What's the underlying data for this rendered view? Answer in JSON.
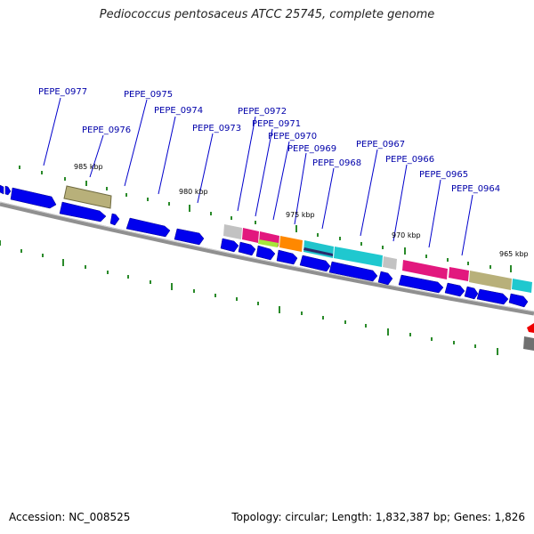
{
  "title": "Pediococcus pentosaceus ATCC 25745, complete genome",
  "accession_label": "Accession: NC_008525",
  "stats_label": "Topology: circular; Length: 1,832,387 bp; Genes: 1,826",
  "colors": {
    "forward_gene": "#0000ee",
    "backbone": "#888888",
    "gene_label": "#0000aa",
    "tick": "#228b22"
  },
  "position_labels": [
    "985 kbp",
    "980 kbp",
    "975 kbp",
    "970 kbp",
    "965 kbp"
  ],
  "gene_labels": [
    "PEPE_0977",
    "PEPE_0976",
    "PEPE_0975",
    "PEPE_0974",
    "PEPE_0973",
    "PEPE_0972",
    "PEPE_0971",
    "PEPE_0970",
    "PEPE_0969",
    "PEPE_0968",
    "PEPE_0967",
    "PEPE_0966",
    "PEPE_0965",
    "PEPE_0964"
  ]
}
